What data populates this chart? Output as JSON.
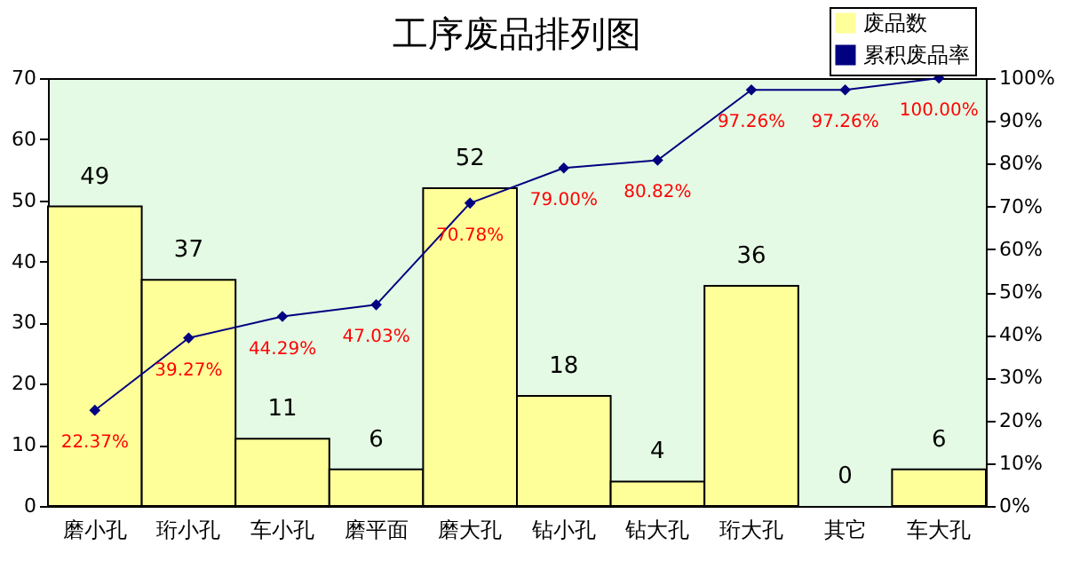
{
  "chart_data": {
    "type": "bar",
    "title": "工序废品排列图",
    "categories": [
      "磨小孔",
      "珩小孔",
      "车小孔",
      "磨平面",
      "磨大孔",
      "钻小孔",
      "钻大孔",
      "珩大孔",
      "其它",
      "车大孔"
    ],
    "series": [
      {
        "name": "废品数",
        "color": "#ffff99",
        "values": [
          49,
          37,
          11,
          6,
          52,
          18,
          4,
          36,
          0,
          6
        ],
        "value_labels": [
          "49",
          "37",
          "11",
          "6",
          "52",
          "18",
          "4",
          "36",
          "0",
          "6"
        ]
      },
      {
        "name": "累积废品率",
        "type": "line",
        "axis": "y2",
        "color": "#000080",
        "values": [
          22.37,
          39.27,
          44.29,
          47.03,
          70.78,
          79.0,
          80.82,
          97.26,
          97.26,
          100.0
        ],
        "value_labels": [
          "22.37%",
          "39.27%",
          "44.29%",
          "47.03%",
          "70.78%",
          "79.00%",
          "80.82%",
          "97.26%",
          "97.26%",
          "100.00%"
        ]
      }
    ],
    "ylim": [
      0,
      70
    ],
    "yticks": [
      0,
      10,
      20,
      30,
      40,
      50,
      60,
      70
    ],
    "y2lim": [
      0,
      100
    ],
    "y2ticks": [
      {
        "value": 0,
        "label": "0%"
      },
      {
        "value": 10,
        "label": "10%"
      },
      {
        "value": 20,
        "label": "20%"
      },
      {
        "value": 30,
        "label": "30%"
      },
      {
        "value": 40,
        "label": "40%"
      },
      {
        "value": 50,
        "label": "50%"
      },
      {
        "value": 60,
        "label": "60%"
      },
      {
        "value": 70,
        "label": "70%"
      },
      {
        "value": 80,
        "label": "80%"
      },
      {
        "value": 90,
        "label": "90%"
      },
      {
        "value": 100,
        "label": "100%"
      }
    ],
    "marker": "diamond",
    "grid": false,
    "legend": "top right"
  }
}
